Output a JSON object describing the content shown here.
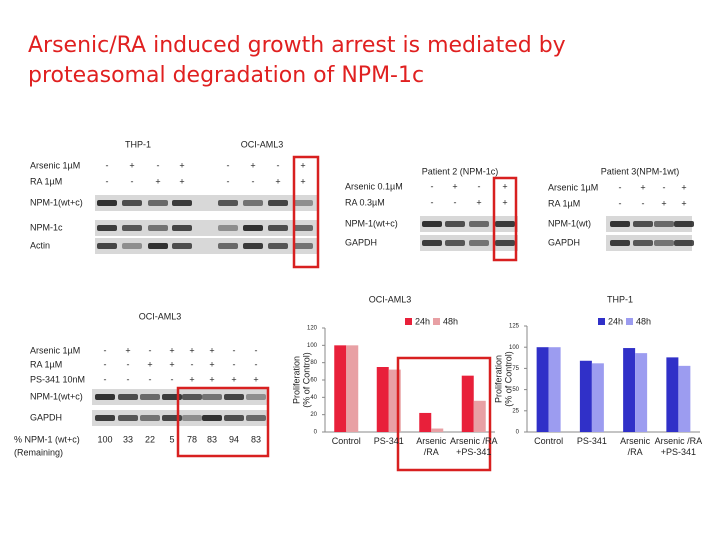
{
  "title": [
    "Arsenic/RA induced growth arrest is mediated by",
    "proteasomal degradation of NPM-1c"
  ],
  "blots": [
    {
      "headers": [
        "THP-1",
        "OCI-AML3"
      ],
      "treatments": [
        {
          "label": "Arsenic 1µM",
          "signs": [
            "-",
            "+",
            "-",
            "+",
            "-",
            "+",
            "-",
            "+"
          ]
        },
        {
          "label": "RA 1µM",
          "signs": [
            "-",
            "-",
            "+",
            "+",
            "-",
            "-",
            "+",
            "+"
          ]
        }
      ],
      "bands": [
        "NPM-1(wt+c)",
        "NPM-1c",
        "Actin"
      ]
    },
    {
      "headers": [
        "Patient 2 (NPM-1c)"
      ],
      "treatments": [
        {
          "label": "Arsenic 0.1µM",
          "signs": [
            "-",
            "+",
            "-",
            "+"
          ]
        },
        {
          "label": "RA 0.3µM",
          "signs": [
            "-",
            "-",
            "+",
            "+"
          ]
        }
      ],
      "bands": [
        "NPM-1(wt+c)",
        "GAPDH"
      ]
    },
    {
      "headers": [
        "Patient 3(NPM-1wt)"
      ],
      "treatments": [
        {
          "label": "Arsenic 1µM",
          "signs": [
            "-",
            "+",
            "-",
            "+"
          ]
        },
        {
          "label": "RA 1µM",
          "signs": [
            "-",
            "-",
            "+",
            "+"
          ]
        }
      ],
      "bands": [
        "NPM-1(wt)",
        "GAPDH"
      ]
    },
    {
      "headers": [
        "OCI-AML3"
      ],
      "treatments": [
        {
          "label": "Arsenic 1µM",
          "signs": [
            "-",
            "+",
            "-",
            "+",
            "+",
            "+",
            "-",
            "-"
          ]
        },
        {
          "label": "RA 1µM",
          "signs": [
            "-",
            "-",
            "+",
            "+",
            "-",
            "+",
            "-",
            "-"
          ]
        },
        {
          "label": "PS-341 10nM",
          "signs": [
            "-",
            "-",
            "-",
            "-",
            "+",
            "+",
            "+",
            "+"
          ]
        }
      ],
      "bands": [
        "NPM-1(wt+c)",
        "GAPDH"
      ],
      "remaining": {
        "label": [
          "% NPM-1 (wt+c)",
          "(Remaining)"
        ],
        "values": [
          "100",
          "33",
          "22",
          "5",
          "78",
          "83",
          "94",
          "83"
        ]
      }
    }
  ],
  "chart_data": [
    {
      "type": "bar",
      "title": "OCI-AML3",
      "y_label": [
        "Proliferation",
        "(% of Control)"
      ],
      "categories": [
        "Control",
        "PS-341",
        "Arsenic\n/RA",
        "Arsenic /RA\n+PS-341"
      ],
      "series": [
        {
          "name": "24h",
          "color": "#e8203a",
          "values": [
            100,
            75,
            22,
            65
          ]
        },
        {
          "name": "48h",
          "color": "#e8a0a4",
          "values": [
            100,
            72,
            4,
            36
          ]
        }
      ],
      "ylim": [
        0,
        120
      ],
      "yticks": [
        0,
        20,
        40,
        60,
        80,
        100,
        120
      ]
    },
    {
      "type": "bar",
      "title": "THP-1",
      "y_label": [
        "Proliferation",
        "(% of Control)"
      ],
      "categories": [
        "Control",
        "PS-341",
        "Arsenic\n/RA",
        "Arsenic /RA\n+PS-341"
      ],
      "series": [
        {
          "name": "24h",
          "color": "#3030c8",
          "values": [
            100,
            84,
            99,
            88
          ]
        },
        {
          "name": "48h",
          "color": "#9c9cf0",
          "values": [
            100,
            81,
            93,
            78
          ]
        }
      ],
      "ylim": [
        0,
        125
      ],
      "yticks": [
        0,
        25,
        50,
        75,
        100,
        125
      ]
    }
  ]
}
